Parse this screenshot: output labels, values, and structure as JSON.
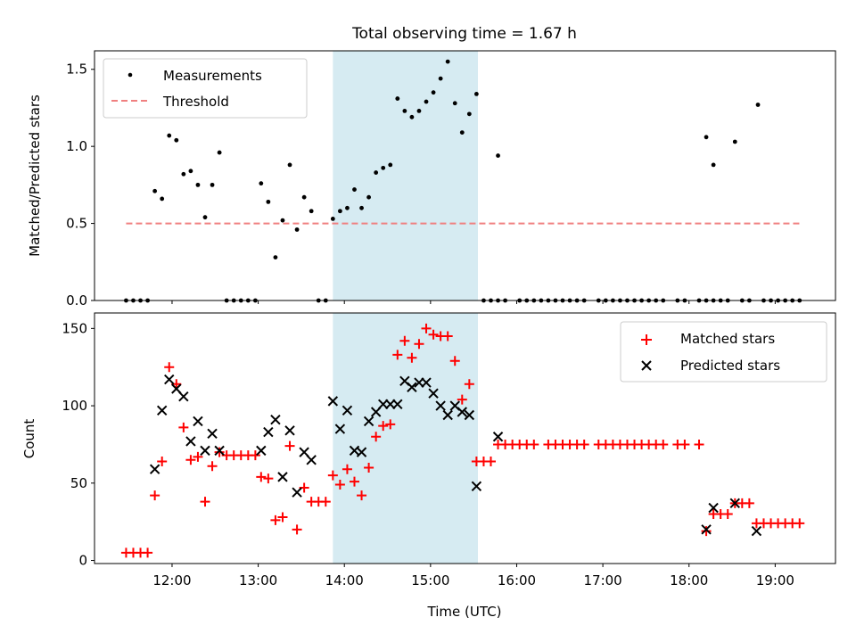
{
  "title": "Total observing time = 1.67 h",
  "chart_data": [
    {
      "type": "scatter",
      "ylabel": "Matched/Predicted stars",
      "ylim": [
        0,
        1.62
      ],
      "yticks": [
        0.0,
        0.5,
        1.0,
        1.5
      ],
      "ytick_labels": [
        "0.0",
        "0.5",
        "1.0",
        "1.5"
      ],
      "highlight_span": [
        "13:52",
        "15:33"
      ],
      "highlight_color": "#add8e6",
      "legend_placement": "upper-left",
      "series": [
        {
          "name": "Measurements",
          "marker": "dot",
          "color": "#000000",
          "points": [
            [
              "11:28",
              0
            ],
            [
              "11:33",
              0
            ],
            [
              "11:38",
              0
            ],
            [
              "11:43",
              0
            ],
            [
              "11:48",
              0.71
            ],
            [
              "11:53",
              0.66
            ],
            [
              "11:58",
              1.07
            ],
            [
              "12:03",
              1.04
            ],
            [
              "12:08",
              0.82
            ],
            [
              "12:13",
              0.84
            ],
            [
              "12:18",
              0.75
            ],
            [
              "12:23",
              0.54
            ],
            [
              "12:28",
              0.75
            ],
            [
              "12:33",
              0.96
            ],
            [
              "12:38",
              0
            ],
            [
              "12:43",
              0
            ],
            [
              "12:48",
              0
            ],
            [
              "12:53",
              0
            ],
            [
              "12:58",
              0
            ],
            [
              "13:02",
              0.76
            ],
            [
              "13:07",
              0.64
            ],
            [
              "13:12",
              0.28
            ],
            [
              "13:17",
              0.52
            ],
            [
              "13:22",
              0.88
            ],
            [
              "13:27",
              0.46
            ],
            [
              "13:32",
              0.67
            ],
            [
              "13:37",
              0.58
            ],
            [
              "13:42",
              0
            ],
            [
              "13:47",
              0
            ],
            [
              "13:52",
              0.53
            ],
            [
              "13:57",
              0.58
            ],
            [
              "14:02",
              0.6
            ],
            [
              "14:07",
              0.72
            ],
            [
              "14:12",
              0.6
            ],
            [
              "14:17",
              0.67
            ],
            [
              "14:22",
              0.83
            ],
            [
              "14:27",
              0.86
            ],
            [
              "14:32",
              0.88
            ],
            [
              "14:37",
              1.31
            ],
            [
              "14:42",
              1.23
            ],
            [
              "14:47",
              1.19
            ],
            [
              "14:52",
              1.23
            ],
            [
              "14:57",
              1.29
            ],
            [
              "15:02",
              1.35
            ],
            [
              "15:07",
              1.44
            ],
            [
              "15:12",
              1.55
            ],
            [
              "15:17",
              1.28
            ],
            [
              "15:22",
              1.09
            ],
            [
              "15:27",
              1.21
            ],
            [
              "15:32",
              1.34
            ],
            [
              "15:37",
              0
            ],
            [
              "15:42",
              0
            ],
            [
              "15:47",
              0
            ],
            [
              "15:52",
              0
            ],
            [
              "15:47",
              0.94
            ],
            [
              "16:02",
              0
            ],
            [
              "16:07",
              0
            ],
            [
              "16:12",
              0
            ],
            [
              "16:17",
              0
            ],
            [
              "16:22",
              0
            ],
            [
              "16:27",
              0
            ],
            [
              "16:32",
              0
            ],
            [
              "16:37",
              0
            ],
            [
              "16:42",
              0
            ],
            [
              "16:47",
              0
            ],
            [
              "16:57",
              0
            ],
            [
              "17:02",
              0
            ],
            [
              "17:07",
              0
            ],
            [
              "17:12",
              0
            ],
            [
              "17:17",
              0
            ],
            [
              "17:22",
              0
            ],
            [
              "17:27",
              0
            ],
            [
              "17:32",
              0
            ],
            [
              "17:37",
              0
            ],
            [
              "17:42",
              0
            ],
            [
              "17:52",
              0
            ],
            [
              "17:57",
              0
            ],
            [
              "18:07",
              0
            ],
            [
              "18:12",
              0
            ],
            [
              "18:17",
              0
            ],
            [
              "18:22",
              0
            ],
            [
              "18:27",
              0
            ],
            [
              "18:12",
              1.06
            ],
            [
              "18:17",
              0.88
            ],
            [
              "18:32",
              1.03
            ],
            [
              "18:48",
              1.27
            ],
            [
              "18:37",
              0
            ],
            [
              "18:42",
              0
            ],
            [
              "18:52",
              0
            ],
            [
              "18:57",
              0
            ],
            [
              "19:02",
              0
            ],
            [
              "19:07",
              0
            ],
            [
              "19:12",
              0
            ],
            [
              "19:17",
              0
            ]
          ]
        },
        {
          "name": "Threshold",
          "line_style": "dashed",
          "color": "#f08080",
          "points": [
            [
              "11:28",
              0.5
            ],
            [
              "19:17",
              0.5
            ]
          ]
        }
      ]
    },
    {
      "type": "scatter",
      "xlabel": "Time (UTC)",
      "ylabel": "Count",
      "ylim": [
        -2,
        160
      ],
      "yticks": [
        0,
        50,
        100,
        150
      ],
      "ytick_labels": [
        "0",
        "50",
        "100",
        "150"
      ],
      "xlim": [
        "11:06",
        "19:42"
      ],
      "xticks": [
        "12:00",
        "13:00",
        "14:00",
        "15:00",
        "16:00",
        "17:00",
        "18:00",
        "19:00"
      ],
      "xtick_labels": [
        "12:00",
        "13:00",
        "14:00",
        "15:00",
        "16:00",
        "17:00",
        "18:00",
        "19:00"
      ],
      "highlight_span": [
        "13:52",
        "15:33"
      ],
      "highlight_color": "#add8e6",
      "legend_placement": "upper-right",
      "series": [
        {
          "name": "Matched stars",
          "marker": "plus",
          "color": "#ff0000",
          "points": [
            [
              "11:28",
              5
            ],
            [
              "11:33",
              5
            ],
            [
              "11:38",
              5
            ],
            [
              "11:43",
              5
            ],
            [
              "11:48",
              42
            ],
            [
              "11:53",
              64
            ],
            [
              "11:58",
              125
            ],
            [
              "12:03",
              114
            ],
            [
              "12:08",
              86
            ],
            [
              "12:13",
              65
            ],
            [
              "12:18",
              67
            ],
            [
              "12:23",
              38
            ],
            [
              "12:28",
              61
            ],
            [
              "12:33",
              70
            ],
            [
              "12:38",
              68
            ],
            [
              "12:43",
              68
            ],
            [
              "12:48",
              68
            ],
            [
              "12:53",
              68
            ],
            [
              "12:58",
              68
            ],
            [
              "13:02",
              54
            ],
            [
              "13:07",
              53
            ],
            [
              "13:12",
              26
            ],
            [
              "13:17",
              28
            ],
            [
              "13:22",
              74
            ],
            [
              "13:27",
              20
            ],
            [
              "13:32",
              47
            ],
            [
              "13:37",
              38
            ],
            [
              "13:42",
              38
            ],
            [
              "13:47",
              38
            ],
            [
              "13:52",
              55
            ],
            [
              "13:57",
              49
            ],
            [
              "14:02",
              59
            ],
            [
              "14:07",
              51
            ],
            [
              "14:12",
              42
            ],
            [
              "14:17",
              60
            ],
            [
              "14:22",
              80
            ],
            [
              "14:27",
              87
            ],
            [
              "14:32",
              88
            ],
            [
              "14:37",
              133
            ],
            [
              "14:42",
              142
            ],
            [
              "14:47",
              131
            ],
            [
              "14:52",
              140
            ],
            [
              "14:57",
              150
            ],
            [
              "15:02",
              146
            ],
            [
              "15:07",
              145
            ],
            [
              "15:12",
              145
            ],
            [
              "15:17",
              129
            ],
            [
              "15:22",
              104
            ],
            [
              "15:27",
              114
            ],
            [
              "15:32",
              64
            ],
            [
              "15:37",
              64
            ],
            [
              "15:42",
              64
            ],
            [
              "15:47",
              75
            ],
            [
              "15:52",
              75
            ],
            [
              "15:57",
              75
            ],
            [
              "16:02",
              75
            ],
            [
              "16:07",
              75
            ],
            [
              "16:12",
              75
            ],
            [
              "16:22",
              75
            ],
            [
              "16:27",
              75
            ],
            [
              "16:32",
              75
            ],
            [
              "16:37",
              75
            ],
            [
              "16:42",
              75
            ],
            [
              "16:47",
              75
            ],
            [
              "16:57",
              75
            ],
            [
              "17:02",
              75
            ],
            [
              "17:07",
              75
            ],
            [
              "17:12",
              75
            ],
            [
              "17:17",
              75
            ],
            [
              "17:22",
              75
            ],
            [
              "17:27",
              75
            ],
            [
              "17:32",
              75
            ],
            [
              "17:37",
              75
            ],
            [
              "17:42",
              75
            ],
            [
              "17:52",
              75
            ],
            [
              "17:57",
              75
            ],
            [
              "18:07",
              75
            ],
            [
              "18:12",
              19
            ],
            [
              "18:17",
              30
            ],
            [
              "18:22",
              30
            ],
            [
              "18:27",
              30
            ],
            [
              "18:32",
              37
            ],
            [
              "18:37",
              37
            ],
            [
              "18:42",
              37
            ],
            [
              "18:47",
              24
            ],
            [
              "18:52",
              24
            ],
            [
              "18:57",
              24
            ],
            [
              "19:02",
              24
            ],
            [
              "19:07",
              24
            ],
            [
              "19:12",
              24
            ],
            [
              "19:17",
              24
            ]
          ]
        },
        {
          "name": "Predicted stars",
          "marker": "x",
          "color": "#000000",
          "points": [
            [
              "11:48",
              59
            ],
            [
              "11:53",
              97
            ],
            [
              "11:58",
              117
            ],
            [
              "12:03",
              111
            ],
            [
              "12:08",
              106
            ],
            [
              "12:13",
              77
            ],
            [
              "12:18",
              90
            ],
            [
              "12:23",
              71
            ],
            [
              "12:28",
              82
            ],
            [
              "12:33",
              71
            ],
            [
              "13:02",
              71
            ],
            [
              "13:07",
              83
            ],
            [
              "13:12",
              91
            ],
            [
              "13:17",
              54
            ],
            [
              "13:22",
              84
            ],
            [
              "13:27",
              44
            ],
            [
              "13:32",
              70
            ],
            [
              "13:37",
              65
            ],
            [
              "13:52",
              103
            ],
            [
              "13:57",
              85
            ],
            [
              "14:02",
              97
            ],
            [
              "14:07",
              71
            ],
            [
              "14:12",
              70
            ],
            [
              "14:17",
              90
            ],
            [
              "14:22",
              96
            ],
            [
              "14:27",
              101
            ],
            [
              "14:32",
              101
            ],
            [
              "14:37",
              101
            ],
            [
              "14:42",
              116
            ],
            [
              "14:47",
              112
            ],
            [
              "14:52",
              115
            ],
            [
              "14:57",
              115
            ],
            [
              "15:02",
              108
            ],
            [
              "15:07",
              100
            ],
            [
              "15:12",
              94
            ],
            [
              "15:17",
              100
            ],
            [
              "15:22",
              96
            ],
            [
              "15:27",
              94
            ],
            [
              "15:32",
              48
            ],
            [
              "15:47",
              80
            ],
            [
              "18:12",
              20
            ],
            [
              "18:17",
              34
            ],
            [
              "18:32",
              37
            ],
            [
              "18:47",
              19
            ]
          ]
        }
      ]
    }
  ]
}
